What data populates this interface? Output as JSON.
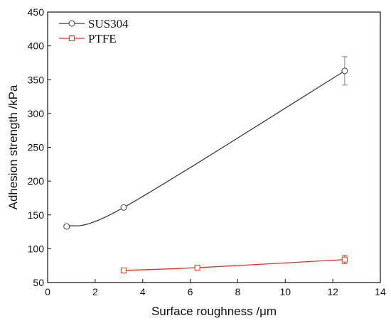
{
  "chart_data": {
    "type": "line",
    "title": "",
    "xlabel": "Surface roughness /μm",
    "ylabel": "Adhesion strength /kPa",
    "xlim": [
      0,
      14
    ],
    "ylim": [
      50,
      450
    ],
    "xticks": [
      0,
      2,
      4,
      6,
      8,
      10,
      12,
      14
    ],
    "yticks": [
      50,
      100,
      150,
      200,
      250,
      300,
      350,
      400,
      450
    ],
    "grid": false,
    "legend_position": "top-left",
    "series": [
      {
        "name": "SUS304",
        "color": "#3a3a3a",
        "marker": "circle",
        "x": [
          0.8,
          3.2,
          12.5
        ],
        "y": [
          133,
          161,
          363
        ],
        "errors": [
          0,
          0,
          21
        ]
      },
      {
        "name": "PTFE",
        "color": "#e8302a",
        "marker": "square",
        "x": [
          3.2,
          6.3,
          12.5
        ],
        "y": [
          68,
          72,
          84
        ],
        "errors": [
          0,
          0,
          6
        ]
      }
    ]
  }
}
